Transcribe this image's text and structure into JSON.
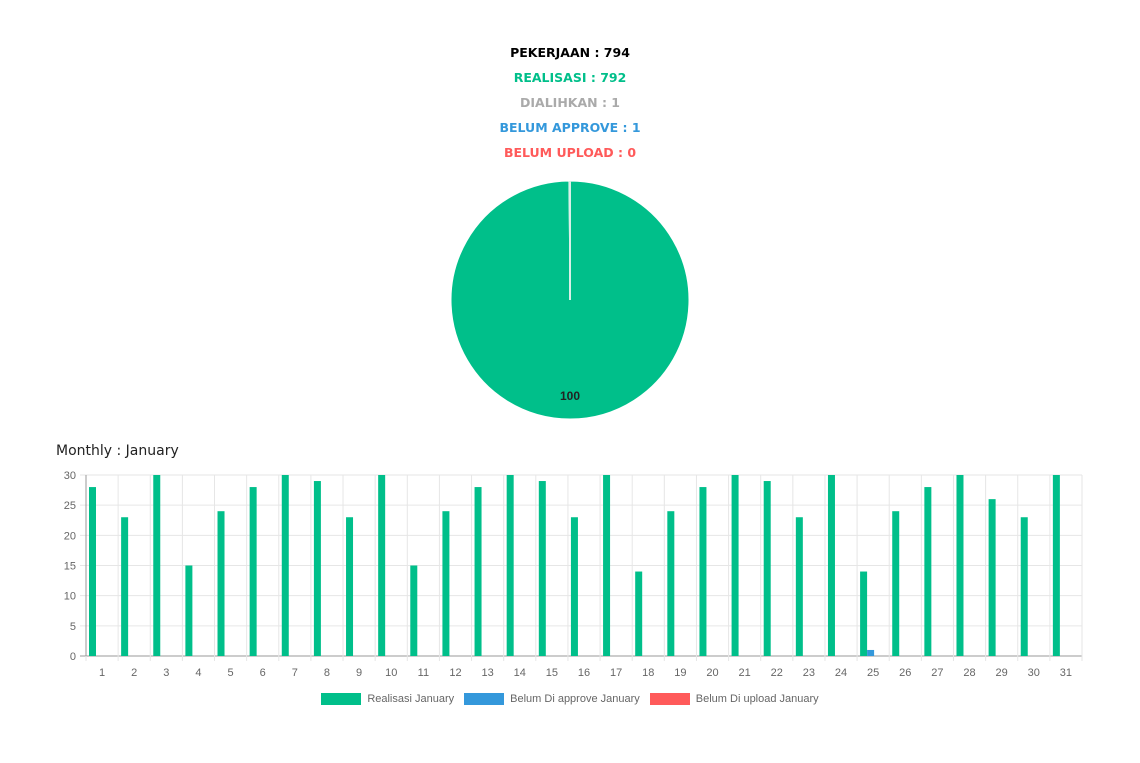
{
  "summary": {
    "pekerjaan": "PEKERJAAN : 794",
    "realisasi": "REALISASI : 792",
    "dialihkan": "DIALIHKAN : 1",
    "belum_approve": "BELUM APPROVE : 1",
    "belum_upload": "BELUM UPLOAD : 0"
  },
  "colors": {
    "realisasi": "#00bf8a",
    "belum_approve": "#3498db",
    "belum_upload": "#ff5a5a",
    "dialihkan": "#aaaaaa",
    "pekerjaan": "#000000"
  },
  "monthly": {
    "title": "Monthly : January"
  },
  "legend": {
    "realisasi": "Realisasi January",
    "belum_approve": "Belum Di approve January",
    "belum_upload": "Belum Di upload January"
  },
  "chart_data": [
    {
      "type": "pie",
      "slices": [
        {
          "label": "Realisasi",
          "value": 100,
          "color": "#00bf8a"
        },
        {
          "label": "Belum Approve",
          "value": 0.13,
          "color": "#3498db"
        },
        {
          "label": "Belum Upload",
          "value": 0,
          "color": "#ff5a5a"
        }
      ],
      "data_label": "100"
    },
    {
      "type": "bar",
      "title": "Monthly : January",
      "categories": [
        "1",
        "2",
        "3",
        "4",
        "5",
        "6",
        "7",
        "8",
        "9",
        "10",
        "11",
        "12",
        "13",
        "14",
        "15",
        "16",
        "17",
        "18",
        "19",
        "20",
        "21",
        "22",
        "23",
        "24",
        "25",
        "26",
        "27",
        "28",
        "29",
        "30",
        "31"
      ],
      "series": [
        {
          "name": "Realisasi January",
          "color": "#00bf8a",
          "values": [
            28,
            23,
            30,
            15,
            24,
            28,
            30,
            29,
            23,
            30,
            15,
            24,
            28,
            30,
            29,
            23,
            30,
            14,
            24,
            28,
            30,
            29,
            23,
            30,
            14,
            24,
            28,
            30,
            26,
            23,
            30
          ]
        },
        {
          "name": "Belum Di approve January",
          "color": "#3498db",
          "values": [
            0,
            0,
            0,
            0,
            0,
            0,
            0,
            0,
            0,
            0,
            0,
            0,
            0,
            0,
            0,
            0,
            0,
            0,
            0,
            0,
            0,
            0,
            0,
            0,
            1,
            0,
            0,
            0,
            0,
            0,
            0
          ]
        },
        {
          "name": "Belum Di upload January",
          "color": "#ff5a5a",
          "values": [
            0,
            0,
            0,
            0,
            0,
            0,
            0,
            0,
            0,
            0,
            0,
            0,
            0,
            0,
            0,
            0,
            0,
            0,
            0,
            0,
            0,
            0,
            0,
            0,
            0,
            0,
            0,
            0,
            0,
            0,
            0
          ]
        }
      ],
      "yticks": [
        "0",
        "5",
        "10",
        "15",
        "20",
        "25",
        "30"
      ],
      "ylim": [
        0,
        30
      ],
      "grid": true,
      "legend_position": "bottom"
    }
  ]
}
